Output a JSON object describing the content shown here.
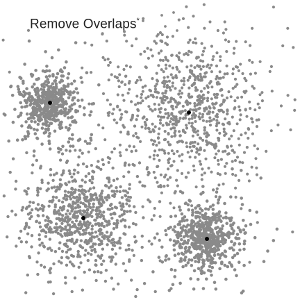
{
  "title": "Remove Overlaps",
  "title_mark": "*",
  "colors": {
    "point": "#8a8a8a",
    "center": "#000000",
    "background": "#ffffff",
    "text": "#222222"
  },
  "clusters": [
    {
      "name": "cluster-top-left",
      "spread": "tight"
    },
    {
      "name": "cluster-top-right",
      "spread": "wide"
    },
    {
      "name": "cluster-bottom-left",
      "spread": "medium"
    },
    {
      "name": "cluster-bottom-right",
      "spread": "tight"
    }
  ]
}
